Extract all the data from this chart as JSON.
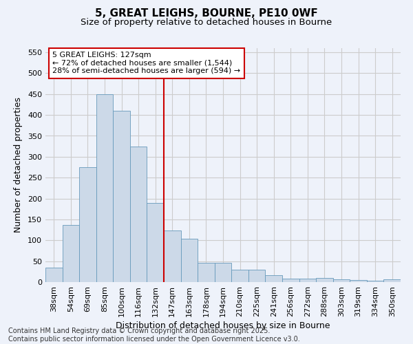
{
  "title1": "5, GREAT LEIGHS, BOURNE, PE10 0WF",
  "title2": "Size of property relative to detached houses in Bourne",
  "xlabel": "Distribution of detached houses by size in Bourne",
  "ylabel": "Number of detached properties",
  "categories": [
    "38sqm",
    "54sqm",
    "69sqm",
    "85sqm",
    "100sqm",
    "116sqm",
    "132sqm",
    "147sqm",
    "163sqm",
    "178sqm",
    "194sqm",
    "210sqm",
    "225sqm",
    "241sqm",
    "256sqm",
    "272sqm",
    "288sqm",
    "303sqm",
    "319sqm",
    "334sqm",
    "350sqm"
  ],
  "values": [
    35,
    136,
    275,
    450,
    410,
    325,
    190,
    124,
    103,
    46,
    46,
    30,
    30,
    17,
    8,
    8,
    10,
    6,
    5,
    4,
    6
  ],
  "bar_color": "#ccd9e8",
  "bar_edge_color": "#6699bb",
  "vline_x": 6.5,
  "annotation_title": "5 GREAT LEIGHS: 127sqm",
  "annotation_line1": "← 72% of detached houses are smaller (1,544)",
  "annotation_line2": "28% of semi-detached houses are larger (594) →",
  "annotation_box_color": "#ffffff",
  "annotation_border_color": "#cc0000",
  "vline_color": "#cc0000",
  "ylim": [
    0,
    560
  ],
  "yticks": [
    0,
    50,
    100,
    150,
    200,
    250,
    300,
    350,
    400,
    450,
    500,
    550
  ],
  "grid_color": "#cccccc",
  "background_color": "#eef2fa",
  "footer1": "Contains HM Land Registry data © Crown copyright and database right 2025.",
  "footer2": "Contains public sector information licensed under the Open Government Licence v3.0.",
  "title_fontsize": 11,
  "subtitle_fontsize": 9.5,
  "axis_label_fontsize": 9,
  "tick_fontsize": 8,
  "annotation_fontsize": 8,
  "footer_fontsize": 7
}
